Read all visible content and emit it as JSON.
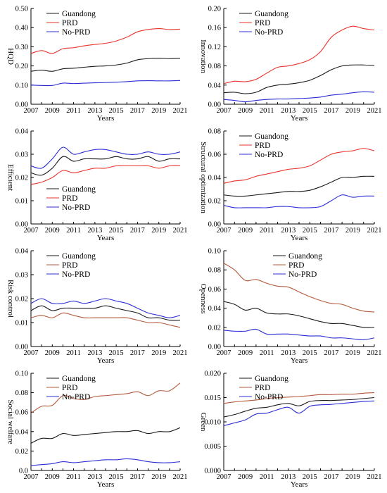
{
  "colors": {
    "Guandong": "#1a1a1a",
    "PRD_red": "#e8322b",
    "PRD_brown": "#b35a3c",
    "No-PRD": "#2c2cd6"
  },
  "chart_data": [
    {
      "type": "line",
      "ylabel": "HQD",
      "xlabel": "Years",
      "xticks": [
        "2007",
        "2009",
        "2011",
        "2013",
        "2015",
        "2017",
        "2019",
        "2021"
      ],
      "yticks": [
        "0.00",
        "0.10",
        "0.20",
        "0.30",
        "0.40",
        "0.50"
      ],
      "ylim": [
        0,
        0.5
      ],
      "xlim": [
        2007,
        2021
      ],
      "legend_position": "top-left",
      "x": [
        2007,
        2008,
        2009,
        2010,
        2011,
        2012,
        2013,
        2014,
        2015,
        2016,
        2017,
        2018,
        2019,
        2020,
        2021
      ],
      "series": [
        {
          "name": "Guandong",
          "color": "#1a1a1a",
          "values": [
            0.172,
            0.178,
            0.172,
            0.185,
            0.188,
            0.193,
            0.198,
            0.2,
            0.205,
            0.215,
            0.232,
            0.238,
            0.24,
            0.238,
            0.24
          ]
        },
        {
          "name": "PRD",
          "color": "#e8322b",
          "values": [
            0.265,
            0.28,
            0.265,
            0.29,
            0.295,
            0.305,
            0.312,
            0.318,
            0.33,
            0.35,
            0.378,
            0.39,
            0.395,
            0.39,
            0.392
          ]
        },
        {
          "name": "No-PRD",
          "color": "#2c2cd6",
          "values": [
            0.1,
            0.098,
            0.098,
            0.11,
            0.108,
            0.11,
            0.112,
            0.113,
            0.115,
            0.118,
            0.122,
            0.123,
            0.122,
            0.122,
            0.124
          ]
        }
      ]
    },
    {
      "type": "line",
      "ylabel": "Innovation",
      "xlabel": "Years",
      "xticks": [
        "2007",
        "2009",
        "2011",
        "2013",
        "2015",
        "2017",
        "2019",
        "2021"
      ],
      "yticks": [
        "0.00",
        "0.04",
        "0.08",
        "0.12",
        "0.16",
        "0.20"
      ],
      "ylim": [
        0,
        0.2
      ],
      "xlim": [
        2007,
        2021
      ],
      "legend_position": "top-left",
      "x": [
        2007,
        2008,
        2009,
        2010,
        2011,
        2012,
        2013,
        2014,
        2015,
        2016,
        2017,
        2018,
        2019,
        2020,
        2021
      ],
      "series": [
        {
          "name": "Guandong",
          "color": "#1a1a1a",
          "values": [
            0.024,
            0.025,
            0.022,
            0.025,
            0.035,
            0.04,
            0.042,
            0.045,
            0.05,
            0.06,
            0.072,
            0.08,
            0.082,
            0.082,
            0.081
          ]
        },
        {
          "name": "PRD",
          "color": "#e8322b",
          "values": [
            0.043,
            0.048,
            0.047,
            0.052,
            0.065,
            0.077,
            0.08,
            0.085,
            0.093,
            0.11,
            0.14,
            0.155,
            0.163,
            0.158,
            0.155
          ]
        },
        {
          "name": "No-PRD",
          "color": "#2c2cd6",
          "values": [
            0.01,
            0.008,
            0.005,
            0.008,
            0.01,
            0.011,
            0.011,
            0.012,
            0.013,
            0.015,
            0.019,
            0.021,
            0.024,
            0.026,
            0.025
          ]
        }
      ]
    },
    {
      "type": "line",
      "ylabel": "Efficient",
      "xlabel": "Years",
      "xticks": [
        "2007",
        "2009",
        "2011",
        "2013",
        "2015",
        "2017",
        "2019",
        "2021"
      ],
      "yticks": [
        "0.00",
        "0.01",
        "0.02",
        "0.03",
        "0.04"
      ],
      "ylim": [
        0,
        0.04
      ],
      "xlim": [
        2007,
        2021
      ],
      "legend_position": "bottom-left",
      "x": [
        2007,
        2008,
        2009,
        2010,
        2011,
        2012,
        2013,
        2014,
        2015,
        2016,
        2017,
        2018,
        2019,
        2020,
        2021
      ],
      "series": [
        {
          "name": "Guandong",
          "color": "#1a1a1a",
          "values": [
            0.022,
            0.021,
            0.024,
            0.029,
            0.027,
            0.028,
            0.028,
            0.028,
            0.029,
            0.028,
            0.028,
            0.029,
            0.027,
            0.028,
            0.028
          ]
        },
        {
          "name": "PRD",
          "color": "#e8322b",
          "values": [
            0.017,
            0.018,
            0.02,
            0.023,
            0.022,
            0.023,
            0.024,
            0.024,
            0.025,
            0.025,
            0.025,
            0.025,
            0.024,
            0.025,
            0.025
          ]
        },
        {
          "name": "No-PRD",
          "color": "#2c2cd6",
          "values": [
            0.025,
            0.024,
            0.028,
            0.033,
            0.03,
            0.031,
            0.032,
            0.032,
            0.031,
            0.03,
            0.03,
            0.031,
            0.03,
            0.03,
            0.031
          ]
        }
      ]
    },
    {
      "type": "line",
      "ylabel": "Structural optimization",
      "xlabel": "Years",
      "xticks": [
        "2007",
        "2009",
        "2011",
        "2013",
        "2015",
        "2017",
        "2019",
        "2021"
      ],
      "yticks": [
        "0.00",
        "0.02",
        "0.04",
        "0.06",
        "0.08"
      ],
      "ylim": [
        0,
        0.08
      ],
      "xlim": [
        2007,
        2021
      ],
      "legend_position": "top-left",
      "x": [
        2007,
        2008,
        2009,
        2010,
        2011,
        2012,
        2013,
        2014,
        2015,
        2016,
        2017,
        2018,
        2019,
        2020,
        2021
      ],
      "series": [
        {
          "name": "Guandong",
          "color": "#1a1a1a",
          "values": [
            0.025,
            0.024,
            0.024,
            0.025,
            0.026,
            0.027,
            0.028,
            0.028,
            0.029,
            0.032,
            0.036,
            0.04,
            0.04,
            0.041,
            0.041
          ]
        },
        {
          "name": "PRD",
          "color": "#e8322b",
          "values": [
            0.035,
            0.037,
            0.038,
            0.041,
            0.043,
            0.045,
            0.047,
            0.048,
            0.05,
            0.055,
            0.06,
            0.062,
            0.063,
            0.065,
            0.063
          ]
        },
        {
          "name": "No-PRD",
          "color": "#2c2cd6",
          "values": [
            0.016,
            0.014,
            0.014,
            0.014,
            0.014,
            0.015,
            0.015,
            0.014,
            0.014,
            0.015,
            0.02,
            0.025,
            0.023,
            0.024,
            0.024
          ]
        }
      ]
    },
    {
      "type": "line",
      "ylabel": "Risk control",
      "xlabel": "Years",
      "xticks": [
        "2007",
        "2009",
        "2011",
        "2013",
        "2015",
        "2017",
        "2019",
        "2021"
      ],
      "yticks": [
        "0.00",
        "0.01",
        "0.02",
        "0.03",
        "0.04"
      ],
      "ylim": [
        0,
        0.04
      ],
      "xlim": [
        2007,
        2021
      ],
      "legend_position": "top-left",
      "x": [
        2007,
        2008,
        2009,
        2010,
        2011,
        2012,
        2013,
        2014,
        2015,
        2016,
        2017,
        2018,
        2019,
        2020,
        2021
      ],
      "series": [
        {
          "name": "Guandong",
          "color": "#1a1a1a",
          "values": [
            0.015,
            0.017,
            0.015,
            0.016,
            0.016,
            0.016,
            0.016,
            0.017,
            0.016,
            0.015,
            0.014,
            0.012,
            0.012,
            0.011,
            0.011
          ]
        },
        {
          "name": "PRD",
          "color": "#b35a3c",
          "values": [
            0.012,
            0.013,
            0.012,
            0.014,
            0.013,
            0.012,
            0.012,
            0.012,
            0.012,
            0.012,
            0.011,
            0.01,
            0.01,
            0.009,
            0.008
          ]
        },
        {
          "name": "No-PRD",
          "color": "#2c2cd6",
          "values": [
            0.018,
            0.02,
            0.018,
            0.018,
            0.019,
            0.018,
            0.019,
            0.02,
            0.019,
            0.018,
            0.016,
            0.014,
            0.013,
            0.012,
            0.013
          ]
        }
      ]
    },
    {
      "type": "line",
      "ylabel": "Openness",
      "xlabel": "Years",
      "xticks": [
        "2007",
        "2009",
        "2011",
        "2013",
        "2015",
        "2017",
        "2019",
        "2021"
      ],
      "yticks": [
        "0.00",
        "0.02",
        "0.04",
        "0.06",
        "0.08",
        "0.10"
      ],
      "ylim": [
        0,
        0.1
      ],
      "xlim": [
        2007,
        2021
      ],
      "legend_position": "top-right",
      "x": [
        2007,
        2008,
        2009,
        2010,
        2011,
        2012,
        2013,
        2014,
        2015,
        2016,
        2017,
        2018,
        2019,
        2020,
        2021
      ],
      "series": [
        {
          "name": "Guandong",
          "color": "#1a1a1a",
          "values": [
            0.047,
            0.044,
            0.038,
            0.04,
            0.035,
            0.034,
            0.034,
            0.032,
            0.029,
            0.026,
            0.024,
            0.024,
            0.022,
            0.02,
            0.02
          ]
        },
        {
          "name": "PRD",
          "color": "#b35a3c",
          "values": [
            0.087,
            0.08,
            0.069,
            0.07,
            0.066,
            0.063,
            0.062,
            0.057,
            0.052,
            0.048,
            0.045,
            0.044,
            0.04,
            0.037,
            0.036
          ]
        },
        {
          "name": "No-PRD",
          "color": "#2c2cd6",
          "values": [
            0.017,
            0.016,
            0.016,
            0.018,
            0.013,
            0.013,
            0.013,
            0.012,
            0.011,
            0.011,
            0.009,
            0.009,
            0.008,
            0.007,
            0.009
          ]
        }
      ]
    },
    {
      "type": "line",
      "ylabel": "Social welfare",
      "xlabel": "Years",
      "xticks": [
        "2007",
        "2009",
        "2011",
        "2013",
        "2015",
        "2017",
        "2019",
        "2021"
      ],
      "yticks": [
        "0.0",
        "0.02",
        "0.04",
        "0.06",
        "0.08",
        "0.10"
      ],
      "ylim": [
        0,
        0.1
      ],
      "xlim": [
        2007,
        2021
      ],
      "legend_position": "top-left",
      "x": [
        2007,
        2008,
        2009,
        2010,
        2011,
        2012,
        2013,
        2014,
        2015,
        2016,
        2017,
        2018,
        2019,
        2020,
        2021
      ],
      "series": [
        {
          "name": "Guandong",
          "color": "#1a1a1a",
          "values": [
            0.028,
            0.033,
            0.033,
            0.038,
            0.036,
            0.037,
            0.038,
            0.039,
            0.04,
            0.04,
            0.041,
            0.038,
            0.04,
            0.04,
            0.044
          ]
        },
        {
          "name": "PRD",
          "color": "#b35a3c",
          "values": [
            0.059,
            0.066,
            0.067,
            0.077,
            0.074,
            0.073,
            0.076,
            0.077,
            0.078,
            0.079,
            0.081,
            0.077,
            0.082,
            0.082,
            0.09
          ]
        },
        {
          "name": "No-PRD",
          "color": "#2c2cd6",
          "values": [
            0.005,
            0.006,
            0.007,
            0.009,
            0.008,
            0.009,
            0.01,
            0.011,
            0.011,
            0.012,
            0.011,
            0.009,
            0.008,
            0.008,
            0.009
          ]
        }
      ]
    },
    {
      "type": "line",
      "ylabel": "Green",
      "xlabel": "Years",
      "xticks": [
        "2007",
        "2009",
        "2011",
        "2013",
        "2015",
        "2017",
        "2019",
        "2021"
      ],
      "yticks": [
        "0.000",
        "0.005",
        "0.010",
        "0.015",
        "0.020"
      ],
      "ylim": [
        0,
        0.02
      ],
      "xlim": [
        2007,
        2021
      ],
      "legend_position": "top-left",
      "x": [
        2007,
        2008,
        2009,
        2010,
        2011,
        2012,
        2013,
        2014,
        2015,
        2016,
        2017,
        2018,
        2019,
        2020,
        2021
      ],
      "series": [
        {
          "name": "Guandong",
          "color": "#1a1a1a",
          "values": [
            0.011,
            0.0115,
            0.0122,
            0.0128,
            0.013,
            0.0135,
            0.0138,
            0.0133,
            0.0142,
            0.0144,
            0.0144,
            0.0145,
            0.0146,
            0.0148,
            0.015
          ]
        },
        {
          "name": "PRD",
          "color": "#b35a3c",
          "values": [
            0.0138,
            0.0141,
            0.0143,
            0.0145,
            0.0148,
            0.015,
            0.0151,
            0.0152,
            0.0154,
            0.0156,
            0.0156,
            0.0157,
            0.0157,
            0.0159,
            0.016
          ]
        },
        {
          "name": "No-PRD",
          "color": "#2c2cd6",
          "values": [
            0.0092,
            0.0098,
            0.0104,
            0.0116,
            0.0118,
            0.0125,
            0.013,
            0.0118,
            0.0132,
            0.0135,
            0.0136,
            0.0138,
            0.014,
            0.0142,
            0.0143
          ]
        }
      ]
    }
  ]
}
